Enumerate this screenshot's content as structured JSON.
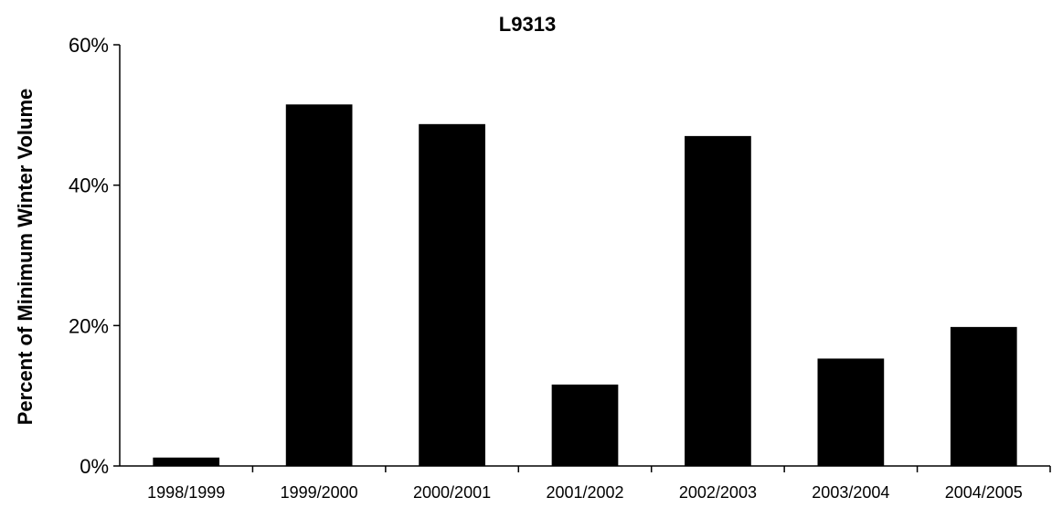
{
  "chart_data": {
    "type": "bar",
    "title": "L9313",
    "xlabel": "",
    "ylabel": "Percent of Minimum Winter Volume",
    "categories": [
      "1998/1999",
      "1999/2000",
      "2000/2001",
      "2001/2002",
      "2002/2003",
      "2003/2004",
      "2004/2005"
    ],
    "values": [
      1.2,
      51.5,
      48.7,
      11.6,
      47.0,
      15.3,
      19.8
    ],
    "ylim": [
      0,
      60
    ],
    "yticks": [
      0,
      20,
      40,
      60
    ],
    "ytick_labels": [
      "0%",
      "20%",
      "40%",
      "60%"
    ],
    "bar_color": "#000000",
    "grid": false,
    "legend": "none"
  }
}
